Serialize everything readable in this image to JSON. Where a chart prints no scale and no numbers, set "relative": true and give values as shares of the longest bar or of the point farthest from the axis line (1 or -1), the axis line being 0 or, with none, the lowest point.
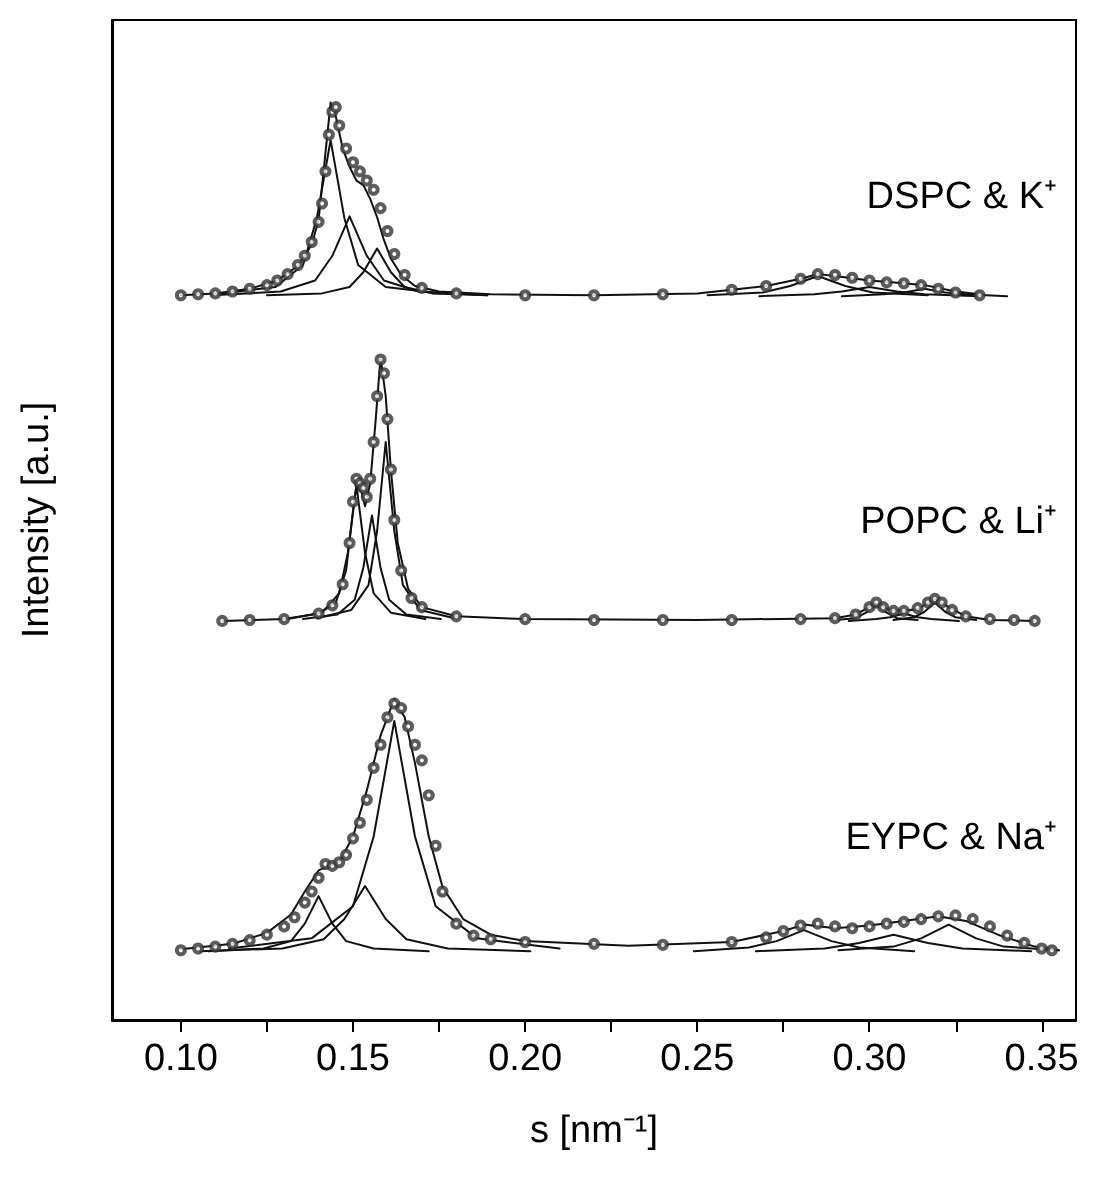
{
  "chart_data": {
    "type": "scatter",
    "relative": true,
    "xlabel": "s [nm⁻¹]",
    "ylabel": "Intensity [a.u.]",
    "xlim": [
      0.08,
      0.36
    ],
    "xticks": [
      {
        "value": 0.1,
        "label": "0.10"
      },
      {
        "value": 0.125,
        "label": null
      },
      0.15,
      {
        "value": 0.175,
        "label": null
      },
      {
        "value": 0.2,
        "label": "0.20"
      },
      {
        "value": 0.225,
        "label": null
      },
      0.25,
      {
        "value": 0.275,
        "label": null
      },
      {
        "value": 0.3,
        "label": "0.30"
      },
      {
        "value": 0.325,
        "label": null
      },
      0.35
    ],
    "line_style": "solid",
    "series": [
      {
        "name": "DSPC & K⁺",
        "marker": "circle",
        "color": "#333333",
        "x": [
          0.1,
          0.105,
          0.11,
          0.115,
          0.12,
          0.125,
          0.128,
          0.131,
          0.134,
          0.136,
          0.138,
          0.14,
          0.141,
          0.142,
          0.143,
          0.144,
          0.145,
          0.146,
          0.148,
          0.15,
          0.152,
          0.154,
          0.156,
          0.158,
          0.16,
          0.162,
          0.165,
          0.17,
          0.18,
          0.2,
          0.22,
          0.24,
          0.26,
          0.27,
          0.28,
          0.285,
          0.29,
          0.295,
          0.3,
          0.305,
          0.31,
          0.315,
          0.32,
          0.325,
          0.332
        ],
        "values": [
          0.79,
          0.791,
          0.792,
          0.794,
          0.797,
          0.801,
          0.806,
          0.813,
          0.823,
          0.833,
          0.848,
          0.87,
          0.89,
          0.925,
          0.965,
          0.99,
          0.995,
          0.975,
          0.95,
          0.935,
          0.925,
          0.915,
          0.905,
          0.885,
          0.86,
          0.835,
          0.812,
          0.798,
          0.792,
          0.79,
          0.79,
          0.791,
          0.796,
          0.8,
          0.808,
          0.813,
          0.812,
          0.809,
          0.806,
          0.804,
          0.803,
          0.801,
          0.797,
          0.793,
          0.79
        ]
      },
      {
        "type": "line",
        "color": "#111111",
        "x": [
          0.1,
          0.11,
          0.12,
          0.128,
          0.134,
          0.138,
          0.14,
          0.142,
          0.1435,
          0.145,
          0.147,
          0.149,
          0.151,
          0.153,
          0.155,
          0.157,
          0.159,
          0.161,
          0.164,
          0.168,
          0.175,
          0.19,
          0.22,
          0.25,
          0.27,
          0.28,
          0.285,
          0.29,
          0.3,
          0.31,
          0.316,
          0.325,
          0.332
        ],
        "values": [
          0.79,
          0.792,
          0.797,
          0.806,
          0.822,
          0.845,
          0.872,
          0.945,
          1.0,
          0.985,
          0.95,
          0.93,
          0.915,
          0.91,
          0.895,
          0.875,
          0.85,
          0.83,
          0.812,
          0.8,
          0.794,
          0.791,
          0.79,
          0.792,
          0.8,
          0.808,
          0.813,
          0.811,
          0.806,
          0.803,
          0.801,
          0.794,
          0.791
        ]
      },
      {
        "type": "line",
        "color": "#111111",
        "x": [
          0.1115,
          0.1275,
          0.1355,
          0.1395,
          0.1435,
          0.1475,
          0.1515,
          0.1595,
          0.1755
        ],
        "values": [
          0.792,
          0.799,
          0.823,
          0.874,
          0.959,
          0.874,
          0.823,
          0.799,
          0.792
        ]
      },
      {
        "type": "line",
        "color": "#111111",
        "x": [
          0.109,
          0.129,
          0.139,
          0.144,
          0.149,
          0.154,
          0.159,
          0.169,
          0.189
        ],
        "values": [
          0.79,
          0.794,
          0.806,
          0.833,
          0.876,
          0.833,
          0.806,
          0.794,
          0.79
        ]
      },
      {
        "type": "line",
        "color": "#111111",
        "x": [
          0.125,
          0.141,
          0.149,
          0.153,
          0.157,
          0.161,
          0.165,
          0.173,
          0.189
        ],
        "values": [
          0.79,
          0.792,
          0.799,
          0.815,
          0.841,
          0.815,
          0.799,
          0.792,
          0.79
        ]
      },
      {
        "type": "line",
        "color": "#111111",
        "x": [
          0.253,
          0.269,
          0.277,
          0.285,
          0.293,
          0.301,
          0.317
        ],
        "values": [
          0.79,
          0.793,
          0.8,
          0.811,
          0.8,
          0.793,
          0.79
        ]
      },
      {
        "type": "line",
        "color": "#111111",
        "x": [
          0.268,
          0.284,
          0.292,
          0.3,
          0.308,
          0.316,
          0.332
        ],
        "values": [
          0.789,
          0.791,
          0.794,
          0.799,
          0.794,
          0.791,
          0.789
        ]
      },
      {
        "type": "line",
        "color": "#111111",
        "x": [
          0.292,
          0.304,
          0.31,
          0.316,
          0.322,
          0.328,
          0.34
        ],
        "values": [
          0.789,
          0.791,
          0.793,
          0.797,
          0.793,
          0.791,
          0.789
        ]
      },
      {
        "name": "POPC & Li⁺",
        "marker": "circle",
        "color": "#333333",
        "x": [
          0.112,
          0.12,
          0.13,
          0.14,
          0.144,
          0.147,
          0.149,
          0.15,
          0.151,
          0.152,
          0.153,
          0.154,
          0.155,
          0.156,
          0.157,
          0.158,
          0.159,
          0.16,
          0.161,
          0.162,
          0.164,
          0.167,
          0.17,
          0.18,
          0.2,
          0.22,
          0.24,
          0.26,
          0.28,
          0.29,
          0.296,
          0.3,
          0.302,
          0.304,
          0.307,
          0.31,
          0.314,
          0.317,
          0.319,
          0.321,
          0.324,
          0.328,
          0.335,
          0.342,
          0.348
        ],
        "values": [
          0.435,
          0.436,
          0.437,
          0.443,
          0.452,
          0.475,
          0.52,
          0.565,
          0.59,
          0.585,
          0.58,
          0.57,
          0.59,
          0.63,
          0.68,
          0.72,
          0.705,
          0.655,
          0.6,
          0.545,
          0.49,
          0.46,
          0.45,
          0.44,
          0.437,
          0.436,
          0.436,
          0.436,
          0.437,
          0.438,
          0.442,
          0.45,
          0.455,
          0.45,
          0.446,
          0.446,
          0.449,
          0.455,
          0.459,
          0.455,
          0.447,
          0.44,
          0.437,
          0.436,
          0.435
        ]
      },
      {
        "type": "line",
        "color": "#111111",
        "x": [
          0.112,
          0.13,
          0.14,
          0.145,
          0.148,
          0.15,
          0.151,
          0.1525,
          0.1535,
          0.155,
          0.1565,
          0.158,
          0.1595,
          0.161,
          0.163,
          0.166,
          0.17,
          0.18,
          0.2,
          0.25,
          0.29,
          0.296,
          0.302,
          0.306,
          0.31,
          0.314,
          0.319,
          0.323,
          0.328,
          0.335,
          0.348
        ],
        "values": [
          0.435,
          0.437,
          0.443,
          0.455,
          0.49,
          0.555,
          0.583,
          0.575,
          0.56,
          0.585,
          0.65,
          0.722,
          0.68,
          0.6,
          0.52,
          0.47,
          0.45,
          0.44,
          0.437,
          0.436,
          0.438,
          0.442,
          0.454,
          0.447,
          0.446,
          0.448,
          0.459,
          0.45,
          0.44,
          0.436,
          0.435
        ]
      },
      {
        "type": "line",
        "color": "#111111",
        "x": [
          0.131,
          0.141,
          0.146,
          0.1485,
          0.151,
          0.1535,
          0.156,
          0.161,
          0.171
        ],
        "values": [
          0.437,
          0.444,
          0.465,
          0.509,
          0.583,
          0.509,
          0.465,
          0.444,
          0.437
        ]
      },
      {
        "type": "line",
        "color": "#111111",
        "x": [
          0.1355,
          0.1455,
          0.1505,
          0.153,
          0.1555,
          0.158,
          0.1605,
          0.1655,
          0.1755
        ],
        "values": [
          0.437,
          0.442,
          0.458,
          0.493,
          0.55,
          0.493,
          0.458,
          0.442,
          0.437
        ]
      },
      {
        "type": "line",
        "color": "#111111",
        "x": [
          0.1395,
          0.1495,
          0.1545,
          0.157,
          0.1595,
          0.162,
          0.1645,
          0.1695,
          0.1795
        ],
        "values": [
          0.438,
          0.447,
          0.474,
          0.533,
          0.63,
          0.533,
          0.474,
          0.447,
          0.438
        ]
      },
      {
        "type": "line",
        "color": "#111111",
        "x": [
          0.29,
          0.296,
          0.299,
          0.302,
          0.305,
          0.308,
          0.314
        ],
        "values": [
          0.436,
          0.438,
          0.444,
          0.452,
          0.444,
          0.438,
          0.436
        ]
      },
      {
        "type": "line",
        "color": "#111111",
        "x": [
          0.294,
          0.302,
          0.306,
          0.31,
          0.314,
          0.318,
          0.326
        ],
        "values": [
          0.435,
          0.437,
          0.439,
          0.443,
          0.439,
          0.437,
          0.435
        ]
      },
      {
        "type": "line",
        "color": "#111111",
        "x": [
          0.307,
          0.313,
          0.316,
          0.319,
          0.322,
          0.325,
          0.331
        ],
        "values": [
          0.436,
          0.439,
          0.445,
          0.455,
          0.445,
          0.439,
          0.436
        ]
      },
      {
        "name": "EYPC & Na⁺",
        "marker": "circle",
        "color": "#333333",
        "x": [
          0.1,
          0.105,
          0.11,
          0.115,
          0.12,
          0.125,
          0.13,
          0.133,
          0.136,
          0.138,
          0.14,
          0.142,
          0.144,
          0.146,
          0.148,
          0.15,
          0.152,
          0.154,
          0.156,
          0.158,
          0.16,
          0.162,
          0.164,
          0.166,
          0.168,
          0.17,
          0.172,
          0.174,
          0.176,
          0.18,
          0.185,
          0.19,
          0.2,
          0.22,
          0.24,
          0.26,
          0.27,
          0.275,
          0.28,
          0.285,
          0.29,
          0.295,
          0.3,
          0.305,
          0.31,
          0.315,
          0.32,
          0.325,
          0.33,
          0.335,
          0.34,
          0.345,
          0.35,
          0.353
        ],
        "values": [
          0.076,
          0.078,
          0.08,
          0.083,
          0.087,
          0.093,
          0.102,
          0.112,
          0.128,
          0.14,
          0.155,
          0.17,
          0.168,
          0.172,
          0.18,
          0.198,
          0.215,
          0.24,
          0.275,
          0.3,
          0.33,
          0.345,
          0.34,
          0.32,
          0.3,
          0.283,
          0.245,
          0.19,
          0.14,
          0.105,
          0.092,
          0.088,
          0.085,
          0.083,
          0.082,
          0.085,
          0.09,
          0.097,
          0.103,
          0.105,
          0.102,
          0.1,
          0.102,
          0.105,
          0.107,
          0.11,
          0.113,
          0.114,
          0.11,
          0.102,
          0.092,
          0.084,
          0.078,
          0.076
        ]
      },
      {
        "type": "line",
        "color": "#111111",
        "x": [
          0.1,
          0.115,
          0.125,
          0.132,
          0.136,
          0.14,
          0.143,
          0.146,
          0.15,
          0.154,
          0.158,
          0.162,
          0.165,
          0.168,
          0.172,
          0.176,
          0.182,
          0.19,
          0.2,
          0.23,
          0.26,
          0.275,
          0.281,
          0.29,
          0.3,
          0.31,
          0.32,
          0.328,
          0.338,
          0.348,
          0.355
        ],
        "values": [
          0.077,
          0.083,
          0.095,
          0.115,
          0.14,
          0.163,
          0.168,
          0.172,
          0.2,
          0.25,
          0.31,
          0.35,
          0.33,
          0.28,
          0.2,
          0.145,
          0.11,
          0.093,
          0.086,
          0.081,
          0.085,
          0.097,
          0.104,
          0.1,
          0.103,
          0.108,
          0.113,
          0.108,
          0.092,
          0.08,
          0.076
        ]
      },
      {
        "type": "line",
        "color": "#111111",
        "x": [
          0.108,
          0.124,
          0.132,
          0.136,
          0.14,
          0.144,
          0.148,
          0.156,
          0.172
        ],
        "values": [
          0.075,
          0.078,
          0.086,
          0.105,
          0.135,
          0.105,
          0.086,
          0.078,
          0.075
        ]
      },
      {
        "type": "line",
        "color": "#111111",
        "x": [
          0.1055,
          0.1295,
          0.1415,
          0.1475,
          0.1535,
          0.1595,
          0.1655,
          0.1775,
          0.2015
        ],
        "values": [
          0.075,
          0.078,
          0.088,
          0.11,
          0.146,
          0.11,
          0.088,
          0.078,
          0.075
        ]
      },
      {
        "type": "line",
        "color": "#111111",
        "x": [
          0.114,
          0.138,
          0.15,
          0.156,
          0.162,
          0.168,
          0.174,
          0.186,
          0.21
        ],
        "values": [
          0.078,
          0.089,
          0.124,
          0.2,
          0.326,
          0.2,
          0.124,
          0.089,
          0.078
        ]
      },
      {
        "type": "line",
        "color": "#111111",
        "x": [
          0.249,
          0.265,
          0.273,
          0.281,
          0.289,
          0.297,
          0.313
        ],
        "values": [
          0.075,
          0.079,
          0.086,
          0.098,
          0.086,
          0.079,
          0.075
        ]
      },
      {
        "type": "line",
        "color": "#111111",
        "x": [
          0.267,
          0.287,
          0.297,
          0.307,
          0.317,
          0.327,
          0.347
        ],
        "values": [
          0.075,
          0.078,
          0.084,
          0.093,
          0.084,
          0.078,
          0.075
        ]
      },
      {
        "type": "line",
        "color": "#111111",
        "x": [
          0.291,
          0.307,
          0.315,
          0.323,
          0.331,
          0.339,
          0.355
        ],
        "values": [
          0.076,
          0.08,
          0.089,
          0.104,
          0.089,
          0.08,
          0.076
        ]
      }
    ]
  }
}
